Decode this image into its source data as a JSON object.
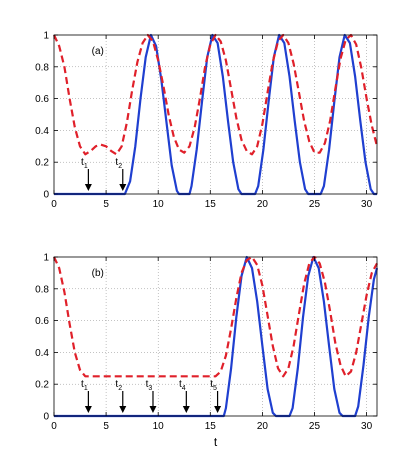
{
  "chart_data": [
    {
      "type": "line",
      "panel_label": "(a)",
      "xlabel": "",
      "xlim": [
        0,
        31
      ],
      "ylim": [
        0,
        1
      ],
      "xticks": [
        0,
        5,
        10,
        15,
        20,
        25,
        30
      ],
      "yticks": [
        0,
        0.2,
        0.4,
        0.6,
        0.8,
        1
      ],
      "ytick_labels": [
        "0",
        "0.2",
        "0.4",
        "0.6",
        "0.8",
        "1"
      ],
      "grid": true,
      "series": [
        {
          "style": "solid",
          "color": "#1f3fd0",
          "x": [
            0,
            6.8,
            7.3,
            7.8,
            8.3,
            8.8,
            9.3,
            9.8,
            10.3,
            10.8,
            11.3,
            11.8,
            12.0,
            13.0,
            13.2,
            13.7,
            14.2,
            14.7,
            15.2,
            15.7,
            16.2,
            16.7,
            17.2,
            17.7,
            18.0,
            19.3,
            19.6,
            20.1,
            20.6,
            21.1,
            21.6,
            22.1,
            22.6,
            23.1,
            23.6,
            24.1,
            24.4,
            25.6,
            25.9,
            26.4,
            26.9,
            27.4,
            27.9,
            28.4,
            28.9,
            29.4,
            29.9,
            30.4,
            30.7,
            31
          ],
          "y": [
            0,
            0,
            0.08,
            0.3,
            0.6,
            0.86,
            1.0,
            0.93,
            0.72,
            0.45,
            0.18,
            0.02,
            0,
            0,
            0.05,
            0.28,
            0.58,
            0.86,
            1.0,
            0.95,
            0.74,
            0.46,
            0.2,
            0.03,
            0,
            0,
            0.05,
            0.28,
            0.58,
            0.86,
            1.0,
            0.95,
            0.74,
            0.46,
            0.2,
            0.03,
            0,
            0,
            0.05,
            0.28,
            0.58,
            0.86,
            1.0,
            0.95,
            0.74,
            0.46,
            0.2,
            0.03,
            0,
            0
          ]
        },
        {
          "style": "dashed",
          "color": "#e0202a",
          "x": [
            0,
            0.5,
            1.0,
            1.5,
            2.0,
            2.5,
            3.0,
            3.5,
            4.0,
            4.5,
            5.0,
            5.5,
            6.0,
            6.5,
            7.0,
            7.5,
            8.0,
            8.5,
            9.0,
            9.5,
            10.0,
            10.5,
            11.0,
            11.5,
            12.0,
            12.5,
            13.0,
            13.5,
            14.0,
            14.5,
            15.0,
            15.5,
            16.0,
            16.5,
            17.0,
            17.5,
            18.0,
            18.5,
            19.0,
            19.5,
            20.0,
            20.5,
            21.0,
            21.5,
            22.0,
            22.5,
            23.0,
            23.5,
            24.0,
            24.5,
            25.0,
            25.5,
            26.0,
            26.5,
            27.0,
            27.5,
            28.0,
            28.5,
            29.0,
            29.5,
            30.0,
            30.5,
            31.0
          ],
          "y": [
            1.0,
            0.93,
            0.8,
            0.6,
            0.42,
            0.3,
            0.25,
            0.27,
            0.3,
            0.31,
            0.3,
            0.27,
            0.25,
            0.3,
            0.45,
            0.65,
            0.83,
            0.95,
            1.0,
            0.96,
            0.84,
            0.68,
            0.5,
            0.36,
            0.28,
            0.26,
            0.3,
            0.42,
            0.6,
            0.8,
            0.94,
            1.0,
            0.96,
            0.84,
            0.66,
            0.48,
            0.34,
            0.27,
            0.25,
            0.3,
            0.44,
            0.64,
            0.83,
            0.96,
            1.0,
            0.95,
            0.82,
            0.64,
            0.46,
            0.33,
            0.26,
            0.26,
            0.32,
            0.46,
            0.66,
            0.85,
            0.97,
            1.0,
            0.94,
            0.79,
            0.6,
            0.43,
            0.3
          ]
        }
      ],
      "annotations": [
        {
          "base": "t",
          "sub": "1",
          "x": 3.3
        },
        {
          "base": "t",
          "sub": "2",
          "x": 6.6
        }
      ]
    },
    {
      "type": "line",
      "panel_label": "(b)",
      "xlabel": "t",
      "xlim": [
        0,
        31
      ],
      "ylim": [
        0,
        1
      ],
      "xticks": [
        0,
        5,
        10,
        15,
        20,
        25,
        30
      ],
      "yticks": [
        0,
        0.2,
        0.4,
        0.6,
        0.8,
        1
      ],
      "ytick_labels": [
        "0",
        "0.2",
        "0.4",
        "0.6",
        "0.8",
        "1"
      ],
      "grid": true,
      "series": [
        {
          "style": "solid",
          "color": "#1f3fd0",
          "x": [
            0,
            16.3,
            16.5,
            17.0,
            17.5,
            18.0,
            18.5,
            19.0,
            19.5,
            20.0,
            20.5,
            21.0,
            21.3,
            22.6,
            22.9,
            23.4,
            23.9,
            24.4,
            24.9,
            25.4,
            25.9,
            26.4,
            26.9,
            27.4,
            27.7,
            28.9,
            29.2,
            29.7,
            30.2,
            30.7,
            31.0
          ],
          "y": [
            0,
            0,
            0.05,
            0.3,
            0.62,
            0.88,
            1.0,
            0.93,
            0.72,
            0.44,
            0.17,
            0.02,
            0,
            0,
            0.05,
            0.3,
            0.62,
            0.88,
            1.0,
            0.93,
            0.72,
            0.44,
            0.17,
            0.02,
            0,
            0,
            0.06,
            0.32,
            0.62,
            0.86,
            0.93
          ]
        },
        {
          "style": "dashed",
          "color": "#e0202a",
          "x": [
            0,
            0.5,
            1.0,
            1.5,
            2.0,
            2.5,
            3.0,
            4.0,
            6.0,
            8.0,
            10.0,
            12.0,
            14.0,
            15.5,
            16.0,
            16.5,
            17.0,
            17.5,
            18.0,
            18.5,
            19.0,
            19.5,
            20.0,
            20.5,
            21.0,
            21.5,
            22.0,
            22.5,
            23.0,
            23.5,
            24.0,
            24.5,
            25.0,
            25.5,
            26.0,
            26.5,
            27.0,
            27.5,
            28.0,
            28.5,
            29.0,
            29.5,
            30.0,
            30.5,
            31.0
          ],
          "y": [
            1.0,
            0.93,
            0.78,
            0.58,
            0.4,
            0.29,
            0.25,
            0.25,
            0.25,
            0.25,
            0.25,
            0.25,
            0.25,
            0.25,
            0.28,
            0.38,
            0.55,
            0.74,
            0.9,
            0.98,
            1.0,
            0.95,
            0.82,
            0.63,
            0.44,
            0.3,
            0.25,
            0.3,
            0.44,
            0.64,
            0.83,
            0.96,
            1.0,
            0.96,
            0.84,
            0.66,
            0.46,
            0.32,
            0.25,
            0.28,
            0.4,
            0.58,
            0.76,
            0.9,
            0.96
          ]
        }
      ],
      "annotations": [
        {
          "base": "t",
          "sub": "1",
          "x": 3.3
        },
        {
          "base": "t",
          "sub": "2",
          "x": 6.6
        },
        {
          "base": "t",
          "sub": "3",
          "x": 9.5
        },
        {
          "base": "t",
          "sub": "4",
          "x": 12.7
        },
        {
          "base": "t",
          "sub": "5",
          "x": 15.7
        }
      ]
    }
  ]
}
